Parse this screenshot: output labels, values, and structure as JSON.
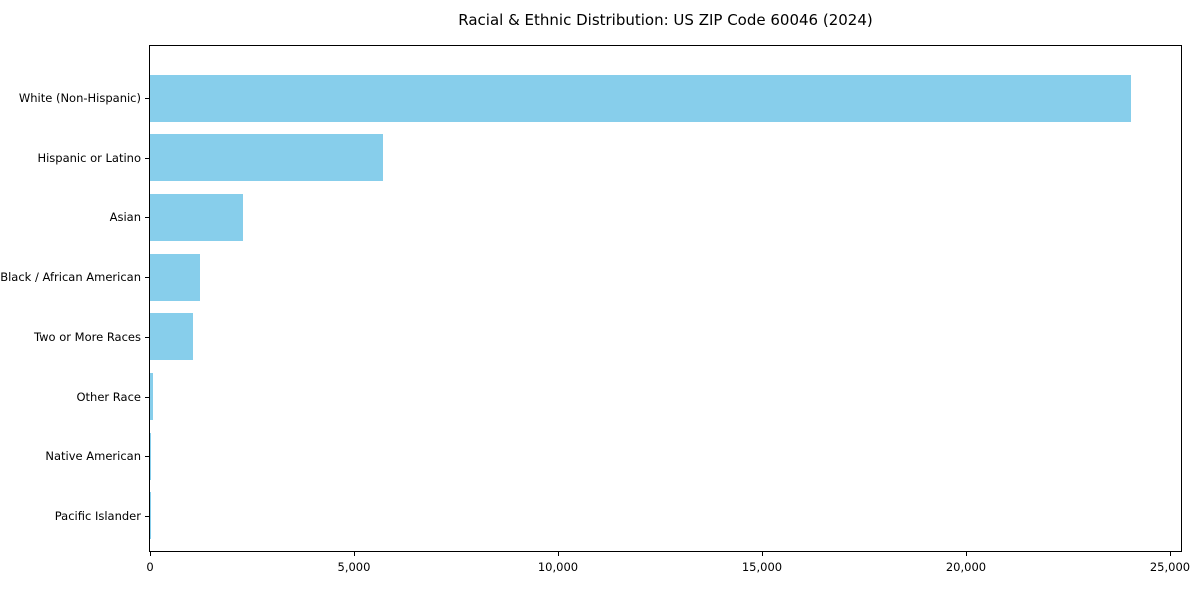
{
  "figure": {
    "background_color": "#ffffff",
    "text_color": "#000000"
  },
  "chart_data": {
    "type": "bar",
    "orientation": "horizontal",
    "title": "Racial & Ethnic Distribution: US ZIP Code 60046 (2024)",
    "categories": [
      "White (Non-Hispanic)",
      "Hispanic or Latino",
      "Asian",
      "Black / African American",
      "Two or More Races",
      "Other Race",
      "Native American",
      "Pacific Islander"
    ],
    "values": [
      24050,
      5700,
      2270,
      1230,
      1060,
      75,
      25,
      8
    ],
    "xlabel": "",
    "ylabel": "",
    "xlim": [
      0,
      25270
    ],
    "x_ticks": [
      0,
      5000,
      10000,
      15000,
      20000,
      25000
    ],
    "x_tick_labels": [
      "0",
      "5,000",
      "10,000",
      "15,000",
      "20,000",
      "25,000"
    ],
    "bar_color": "#87CEEB",
    "axis_color": "#000000",
    "grid": false,
    "legend": null
  }
}
